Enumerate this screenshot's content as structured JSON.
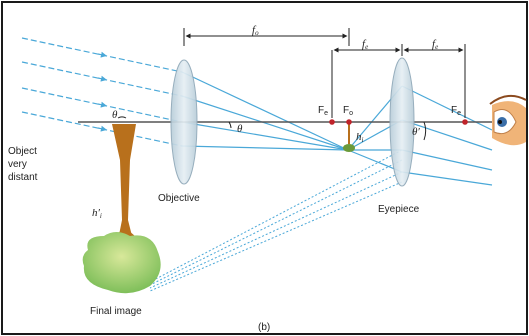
{
  "labels": {
    "object": [
      "Object",
      "very",
      "distant"
    ],
    "objective": "Objective",
    "eyepiece": "Eyepiece",
    "final_image": "Final image",
    "caption": "(b)",
    "f_o": "f",
    "f_o_sub": "o",
    "f_e": "f",
    "f_e_sub": "e",
    "focus_e_prime": "F",
    "focus_e_prime_sub": "e",
    "focus_o": "F",
    "focus_o_sub": "o",
    "focus_e": "F",
    "focus_e_sub": "e",
    "theta": "θ",
    "theta_prime": "θ′",
    "h_i": "h",
    "h_i_sub": "i",
    "h_i_prime": "h′",
    "h_i_prime_sub": "i"
  },
  "colors": {
    "frame": "#1a1a1a",
    "axis": "#555555",
    "lens": "#c9d9e3",
    "lens_stroke": "#8fa8b8",
    "ray": "#4aa8d8",
    "final_image_tree": "#b8701c",
    "final_image_canopy": "#8cc46a",
    "focus_dot": "#c0232a",
    "small_image": "#6a9a3a"
  },
  "icons": [
    "eye-icon",
    "tree-icon"
  ]
}
